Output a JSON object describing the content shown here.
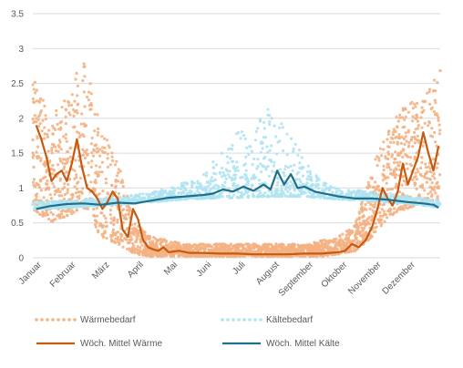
{
  "chart_data": {
    "type": "line",
    "title": "",
    "xlabel": "",
    "ylabel": "",
    "ylim": [
      0,
      3.5
    ],
    "yticks": [
      "0",
      "0.5",
      "1",
      "1.5",
      "2",
      "2.5",
      "3",
      "3.5"
    ],
    "grid": true,
    "legend_placement": "bottom",
    "months": [
      "Januar",
      "Februar",
      "März",
      "April",
      "Mai",
      "Juni",
      "Juli",
      "August",
      "September",
      "Oktober",
      "November",
      "Dezember"
    ],
    "series": [
      {
        "name": "Wärmebedarf",
        "style": "scatter",
        "color": "#f4b183",
        "points_are_hourly": true,
        "band": {
          "x": [
            0,
            0.5,
            1,
            1.5,
            2,
            2.5,
            3,
            3.5,
            4,
            4.5,
            5,
            5.5,
            6,
            6.5,
            7,
            7.5,
            8,
            8.5,
            9,
            9.5,
            10,
            10.5,
            11,
            11.5,
            12
          ],
          "low": [
            0.7,
            0.5,
            0.6,
            0.7,
            0.3,
            0.2,
            0.05,
            0.02,
            0.02,
            0.02,
            0.02,
            0.02,
            0.02,
            0.02,
            0.02,
            0.02,
            0.02,
            0.02,
            0.05,
            0.1,
            0.3,
            0.6,
            0.7,
            0.8,
            0.8
          ],
          "high": [
            2.7,
            2.0,
            2.3,
            2.9,
            1.9,
            1.4,
            0.5,
            0.3,
            0.25,
            0.2,
            0.2,
            0.2,
            0.2,
            0.2,
            0.2,
            0.2,
            0.2,
            0.25,
            0.3,
            0.5,
            1.3,
            1.9,
            2.2,
            2.3,
            2.7
          ]
        }
      },
      {
        "name": "Kältebedarf",
        "style": "scatter",
        "color": "#aee3f2",
        "points_are_hourly": true,
        "band": {
          "x": [
            0,
            1,
            2,
            3,
            3.5,
            4,
            4.5,
            5,
            5.5,
            6,
            6.5,
            7,
            7.5,
            8,
            8.5,
            9,
            10,
            11,
            12
          ],
          "low": [
            0.7,
            0.72,
            0.75,
            0.78,
            0.8,
            0.82,
            0.84,
            0.85,
            0.86,
            0.86,
            0.87,
            0.88,
            0.88,
            0.88,
            0.86,
            0.84,
            0.82,
            0.78,
            0.72
          ],
          "high": [
            0.8,
            0.82,
            0.86,
            0.9,
            0.95,
            1.0,
            1.1,
            1.2,
            1.5,
            1.8,
            1.9,
            2.2,
            1.9,
            1.4,
            1.1,
            1.0,
            0.95,
            0.9,
            0.82
          ]
        }
      },
      {
        "name": "Wöch. Mittel Wärme",
        "style": "line",
        "color": "#c55a11",
        "x": [
          0.1,
          0.25,
          0.4,
          0.55,
          0.7,
          0.85,
          1.0,
          1.15,
          1.3,
          1.45,
          1.6,
          1.75,
          1.9,
          2.05,
          2.2,
          2.35,
          2.5,
          2.65,
          2.8,
          2.95,
          3.1,
          3.25,
          3.4,
          3.55,
          3.7,
          3.85,
          4.0,
          4.3,
          4.6,
          5.0,
          5.5,
          6.0,
          6.5,
          7.0,
          7.5,
          8.0,
          8.5,
          9.0,
          9.2,
          9.4,
          9.6,
          9.8,
          10.0,
          10.15,
          10.3,
          10.45,
          10.6,
          10.75,
          10.9,
          11.05,
          11.2,
          11.35,
          11.5,
          11.65,
          11.8,
          11.95
        ],
        "y": [
          1.9,
          1.7,
          1.45,
          1.1,
          1.2,
          1.25,
          1.1,
          1.35,
          1.7,
          1.3,
          1.0,
          0.95,
          0.85,
          0.7,
          0.8,
          0.95,
          0.85,
          0.4,
          0.3,
          0.7,
          0.55,
          0.25,
          0.15,
          0.12,
          0.1,
          0.15,
          0.08,
          0.1,
          0.07,
          0.07,
          0.06,
          0.06,
          0.05,
          0.05,
          0.05,
          0.06,
          0.06,
          0.08,
          0.1,
          0.2,
          0.15,
          0.25,
          0.45,
          0.7,
          1.0,
          0.85,
          0.75,
          0.95,
          1.35,
          1.05,
          1.25,
          1.45,
          1.8,
          1.5,
          1.25,
          1.6
        ]
      },
      {
        "name": "Wöch. Mittel Kälte",
        "style": "line",
        "color": "#1f6f8b",
        "x": [
          0.1,
          0.5,
          1.0,
          1.5,
          2.0,
          2.5,
          3.0,
          3.5,
          4.0,
          4.5,
          5.0,
          5.3,
          5.6,
          5.9,
          6.2,
          6.5,
          6.8,
          7.0,
          7.2,
          7.4,
          7.6,
          7.8,
          8.0,
          8.3,
          8.6,
          9.0,
          9.5,
          10.0,
          10.5,
          11.0,
          11.5,
          11.8,
          11.95
        ],
        "y": [
          0.7,
          0.74,
          0.77,
          0.78,
          0.76,
          0.79,
          0.78,
          0.82,
          0.86,
          0.88,
          0.9,
          0.92,
          0.98,
          0.95,
          1.02,
          0.96,
          1.05,
          0.98,
          1.25,
          1.05,
          1.2,
          1.0,
          1.02,
          0.95,
          0.92,
          0.88,
          0.85,
          0.85,
          0.83,
          0.8,
          0.78,
          0.76,
          0.72
        ]
      }
    ]
  }
}
